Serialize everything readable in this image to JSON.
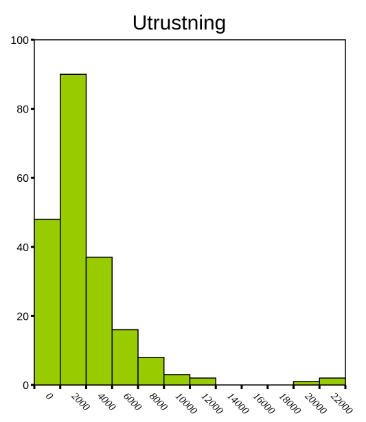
{
  "chart_data": {
    "type": "bar",
    "title": "Utrustning",
    "xlabel": "",
    "ylabel": "",
    "ylim": [
      0,
      100
    ],
    "yticks": [
      0,
      20,
      40,
      60,
      80,
      100
    ],
    "bin_width": 2000,
    "bins_start": -1000,
    "bins_end": 23000,
    "x_tick_labels": [
      "0",
      "2000",
      "4000",
      "6000",
      "8000",
      "10000",
      "12000",
      "14000",
      "16000",
      "18000",
      "20000",
      "22000"
    ],
    "values": [
      48,
      90,
      37,
      16,
      8,
      3,
      2,
      0,
      0,
      0,
      1,
      2
    ],
    "bar_color": "#99cc00",
    "grid": false,
    "legend": "none"
  }
}
